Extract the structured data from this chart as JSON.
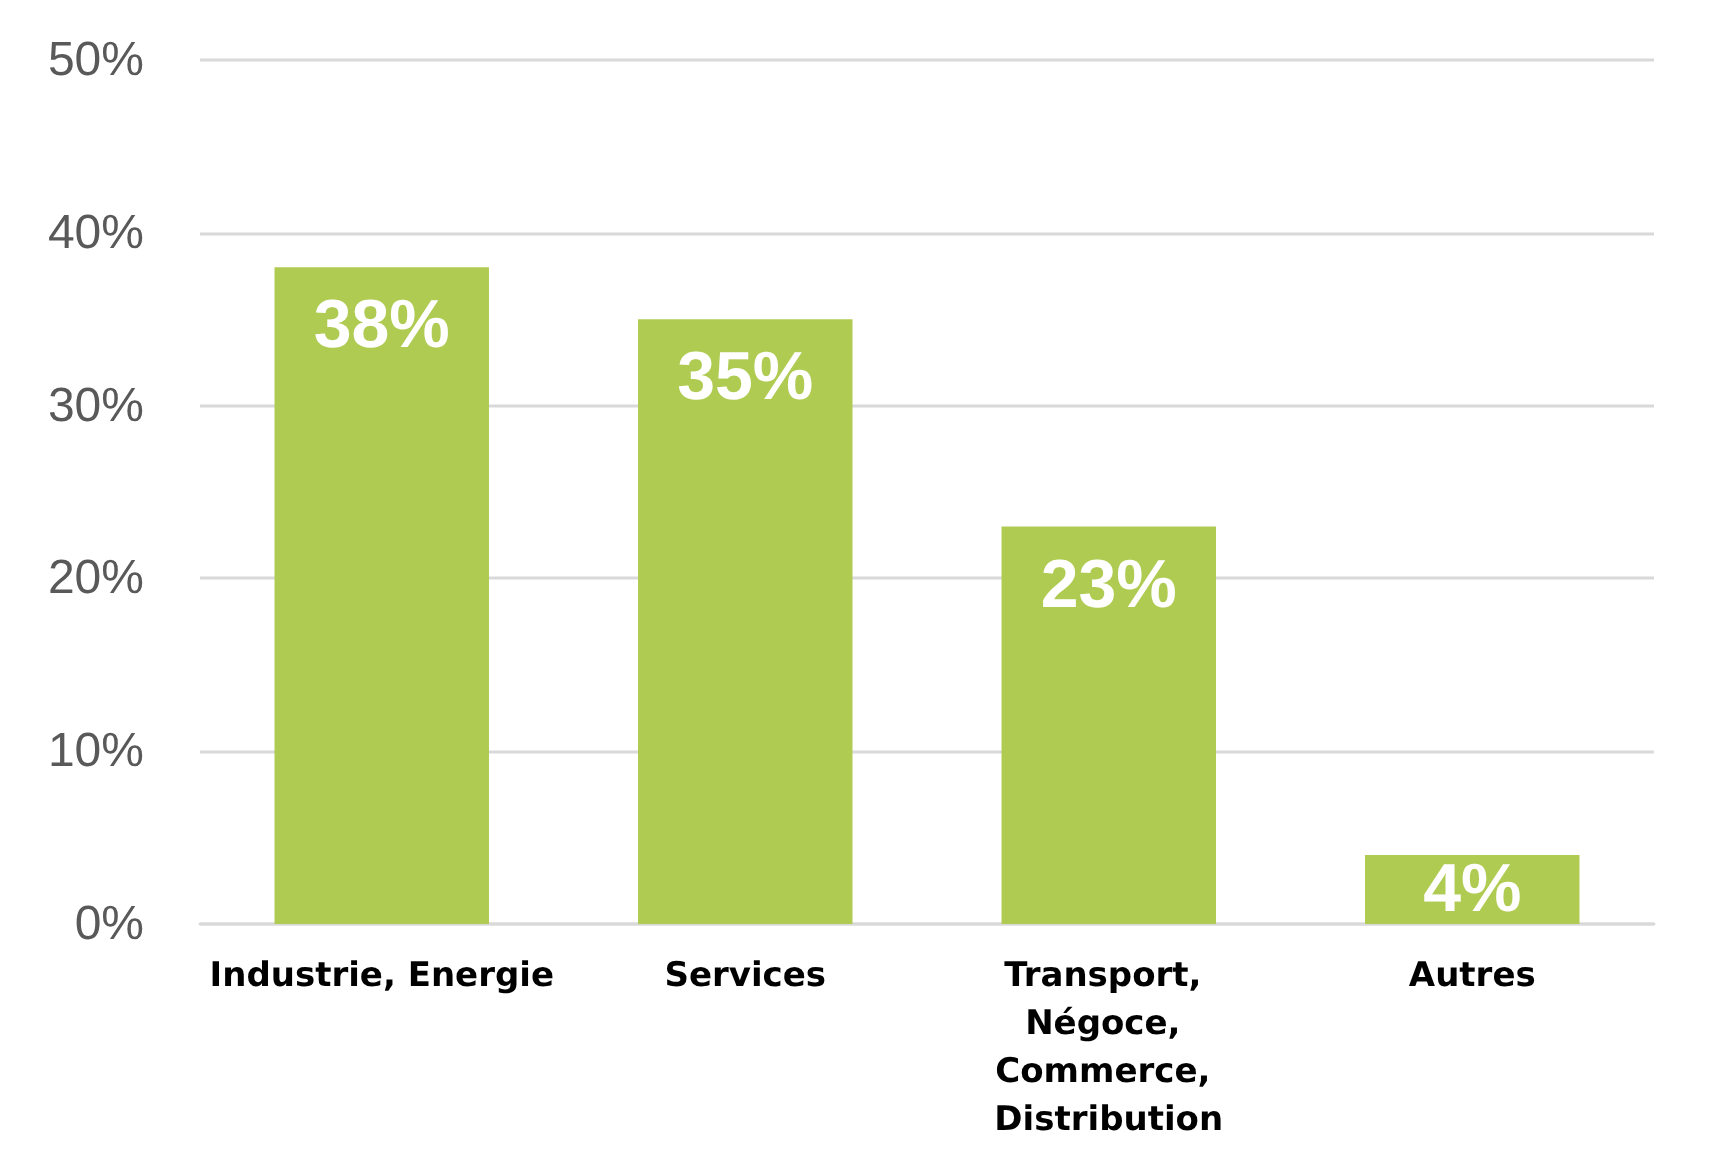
{
  "chart_data": {
    "type": "bar",
    "categories": [
      "Industrie, Energie",
      "Services",
      "Transport, Négoce, Commerce, Distribution",
      "Autres"
    ],
    "values": [
      38,
      35,
      23,
      4
    ],
    "value_labels": [
      "38%",
      "35%",
      "23%",
      "4%"
    ],
    "color": "#b0cb52",
    "ylim": [
      0,
      50
    ],
    "yticks": [
      {
        "value": 0,
        "label": "0%"
      },
      {
        "value": 10,
        "label": "10%"
      },
      {
        "value": 20,
        "label": "20%"
      },
      {
        "value": 30,
        "label": "30%"
      },
      {
        "value": 40,
        "label": "40%"
      },
      {
        "value": 50,
        "label": "50%"
      }
    ],
    "grid": "y"
  }
}
